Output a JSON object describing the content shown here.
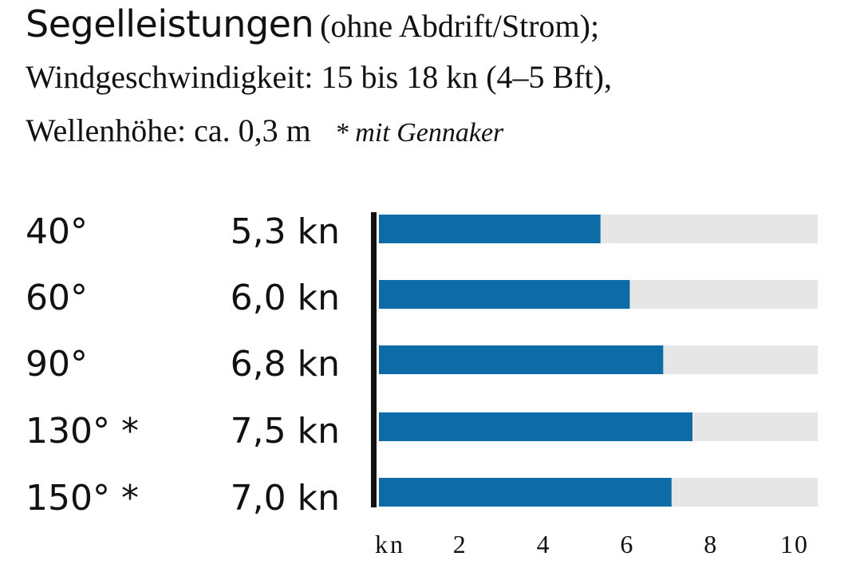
{
  "header": {
    "title": "Segelleistungen",
    "title_suffix": "(ohne Abdrift/Strom);",
    "line2": "Windgeschwindigkeit: 15 bis 18 kn (4–5 Bft),",
    "line3": "Wellenhöhe: ca. 0,3 m",
    "footnote": "* mit Gennaker"
  },
  "rows": [
    {
      "angle": "40°",
      "value_label": "5,3 kn"
    },
    {
      "angle": "60°",
      "value_label": "6,0 kn"
    },
    {
      "angle": "90°",
      "value_label": "6,8 kn"
    },
    {
      "angle": "130° *",
      "value_label": "7,5 kn"
    },
    {
      "angle": "150° *",
      "value_label": "7,0 kn"
    }
  ],
  "chart_data": {
    "type": "bar",
    "orientation": "horizontal",
    "title": "Segelleistungen",
    "categories": [
      "40°",
      "60°",
      "90°",
      "130° *",
      "150° *"
    ],
    "values": [
      5.3,
      6.0,
      6.8,
      7.5,
      7.0
    ],
    "unit": "kn",
    "xlabel": "kn",
    "xlim": [
      0,
      10.5
    ],
    "xticks": [
      2,
      4,
      6,
      8,
      10
    ],
    "bar_color": "#0d6ba8",
    "track_color": "#e6e6e6",
    "axis_color": "#111111"
  }
}
